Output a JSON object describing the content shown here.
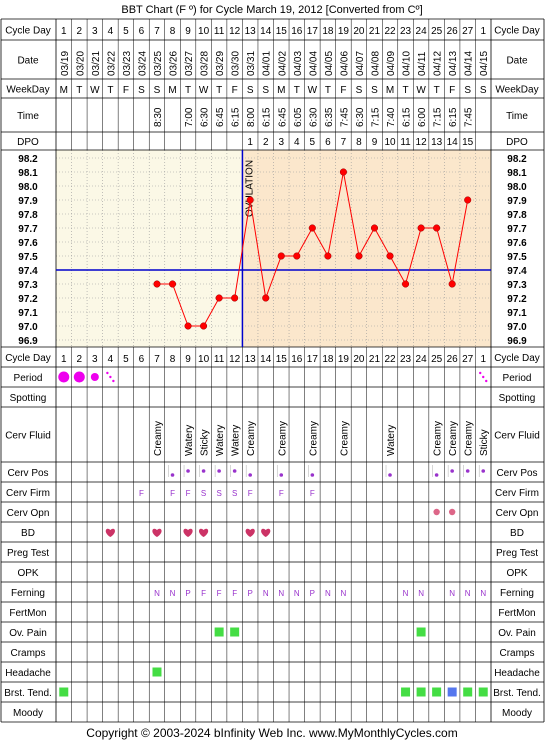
{
  "title": "BBT Chart (F º) for Cycle March 19, 2012  [Converted from Cº]",
  "footer": "Copyright © 2003-2024 bInfinity Web Inc.    www.MyMonthlyCycles.com",
  "row_labels": {
    "cycle_day": "Cycle Day",
    "date": "Date",
    "weekday": "WeekDay",
    "time": "Time",
    "dpo": "DPO",
    "period": "Period",
    "spotting": "Spotting",
    "cerv_fluid": "Cerv Fluid",
    "cerv_pos": "Cerv Pos",
    "cerv_firm": "Cerv Firm",
    "cerv_opn": "Cerv Opn",
    "bd": "BD",
    "preg_test": "Preg Test",
    "opk": "OPK",
    "ferning": "Ferning",
    "fertmon": "FertMon",
    "ov_pain": "Ov. Pain",
    "cramps": "Cramps",
    "headache": "Headache",
    "brst_tend": "Brst. Tend.",
    "moody": "Moody"
  },
  "cycle_days": [
    "1",
    "2",
    "3",
    "4",
    "5",
    "6",
    "7",
    "8",
    "9",
    "10",
    "11",
    "12",
    "13",
    "14",
    "15",
    "16",
    "17",
    "18",
    "19",
    "20",
    "21",
    "22",
    "23",
    "24",
    "25",
    "26",
    "27",
    "1"
  ],
  "dates": [
    "03/19",
    "03/20",
    "03/21",
    "03/22",
    "03/23",
    "03/24",
    "03/25",
    "03/26",
    "03/27",
    "03/28",
    "03/29",
    "03/30",
    "03/31",
    "04/01",
    "04/02",
    "04/03",
    "04/04",
    "04/05",
    "04/06",
    "04/07",
    "04/08",
    "04/09",
    "04/10",
    "04/11",
    "04/12",
    "04/13",
    "04/14",
    "04/15"
  ],
  "weekdays": [
    "M",
    "T",
    "W",
    "T",
    "F",
    "S",
    "S",
    "M",
    "T",
    "W",
    "T",
    "F",
    "S",
    "S",
    "M",
    "T",
    "W",
    "T",
    "F",
    "S",
    "S",
    "M",
    "T",
    "W",
    "T",
    "F",
    "S",
    "S"
  ],
  "times": [
    "",
    "",
    "",
    "",
    "",
    "",
    "8:30",
    "",
    "7:00",
    "6:30",
    "6:45",
    "6:15",
    "8:00",
    "6:15",
    "6:45",
    "6:05",
    "6:30",
    "6:35",
    "7:45",
    "6:30",
    "7:15",
    "7:40",
    "6:15",
    "6:00",
    "7:15",
    "6:15",
    "7:45",
    ""
  ],
  "dpo": [
    "",
    "",
    "",
    "",
    "",
    "",
    "",
    "",
    "",
    "",
    "",
    "",
    "1",
    "2",
    "3",
    "4",
    "5",
    "6",
    "7",
    "8",
    "9",
    "10",
    "11",
    "12",
    "13",
    "14",
    "15",
    ""
  ],
  "cerv_fluid": [
    "",
    "",
    "",
    "",
    "",
    "",
    "Creamy",
    "",
    "Watery",
    "Sticky",
    "Watery",
    "Watery",
    "Creamy",
    "",
    "Creamy",
    "",
    "Creamy",
    "",
    "Creamy",
    "",
    "",
    "Watery",
    "",
    "",
    "Creamy",
    "Creamy",
    "Creamy",
    "Sticky"
  ],
  "cerv_pos": [
    "",
    "",
    "",
    "",
    "",
    "",
    "",
    "low",
    "med",
    "med",
    "med",
    "med",
    "low",
    "",
    "low",
    "",
    "low",
    "",
    "",
    "",
    "",
    "low",
    "",
    "",
    "low",
    "med",
    "med",
    "med"
  ],
  "cerv_firm": [
    "",
    "",
    "",
    "",
    "",
    "F",
    "",
    "F",
    "F",
    "S",
    "S",
    "S",
    "F",
    "",
    "F",
    "",
    "F",
    "",
    "",
    "",
    "",
    "",
    "",
    "",
    "",
    "",
    "",
    ""
  ],
  "cerv_opn": [
    "",
    "",
    "",
    "",
    "",
    "",
    "",
    "",
    "",
    "",
    "",
    "",
    "",
    "",
    "",
    "",
    "",
    "",
    "",
    "",
    "",
    "",
    "",
    "",
    "1",
    "1",
    "",
    ""
  ],
  "period": [
    "heavy",
    "heavy",
    "medium",
    "spotting",
    "",
    "",
    "",
    "",
    "",
    "",
    "",
    "",
    "",
    "",
    "",
    "",
    "",
    "",
    "",
    "",
    "",
    "",
    "",
    "",
    "",
    "",
    "",
    "spotting"
  ],
  "bd": [
    false,
    false,
    false,
    true,
    false,
    false,
    true,
    false,
    true,
    true,
    false,
    false,
    true,
    true,
    false,
    false,
    false,
    false,
    false,
    false,
    false,
    false,
    false,
    false,
    false,
    false,
    false,
    false
  ],
  "ferning": [
    "",
    "",
    "",
    "",
    "",
    "",
    "N",
    "N",
    "P",
    "F",
    "F",
    "F",
    "P",
    "N",
    "N",
    "N",
    "P",
    "N",
    "N",
    "",
    "",
    "",
    "N",
    "N",
    "",
    "N",
    "N",
    "N"
  ],
  "ov_pain": [
    false,
    false,
    false,
    false,
    false,
    false,
    false,
    false,
    false,
    false,
    true,
    true,
    false,
    false,
    false,
    false,
    false,
    false,
    false,
    false,
    false,
    false,
    false,
    true,
    false,
    false,
    false,
    false
  ],
  "headache": [
    false,
    false,
    false,
    false,
    false,
    false,
    true,
    false,
    false,
    false,
    false,
    false,
    false,
    false,
    false,
    false,
    false,
    false,
    false,
    false,
    false,
    false,
    false,
    false,
    false,
    false,
    false,
    false
  ],
  "brst_tend": [
    "green",
    "",
    "",
    "",
    "",
    "",
    "",
    "",
    "",
    "",
    "",
    "",
    "",
    "",
    "",
    "",
    "",
    "",
    "",
    "",
    "",
    "",
    "green",
    "green",
    "green",
    "blue",
    "green",
    "green"
  ],
  "chart_data": {
    "type": "line",
    "x_label": "Cycle Day",
    "y_label": "",
    "y_range": [
      96.9,
      98.2
    ],
    "y_ticks": [
      "98.2",
      "98.1",
      "98.0",
      "97.9",
      "97.8",
      "97.7",
      "97.6",
      "97.5",
      "97.4",
      "97.3",
      "97.2",
      "97.1",
      "97.0",
      "96.9"
    ],
    "coverline": 97.4,
    "ovulation_day": 12,
    "ovulation_label": "OVULATION",
    "series": [
      {
        "values": [
          null,
          null,
          null,
          null,
          null,
          null,
          97.3,
          97.3,
          97.0,
          97.0,
          97.2,
          97.2,
          97.9,
          97.2,
          97.5,
          97.5,
          97.7,
          97.5,
          98.1,
          97.5,
          97.7,
          97.5,
          97.3,
          97.7,
          97.7,
          97.3,
          97.9,
          null
        ]
      }
    ],
    "colors": {
      "line": "#ff0000",
      "coverline": "#0000cc",
      "pre_ov_bg": "#fbf8e6",
      "post_ov_bg": "#fbe7cc",
      "period": "#ee00ee",
      "bd": "#cc3366",
      "pos": "#9933cc",
      "green": "#44dd44",
      "blue": "#5577ee"
    }
  }
}
